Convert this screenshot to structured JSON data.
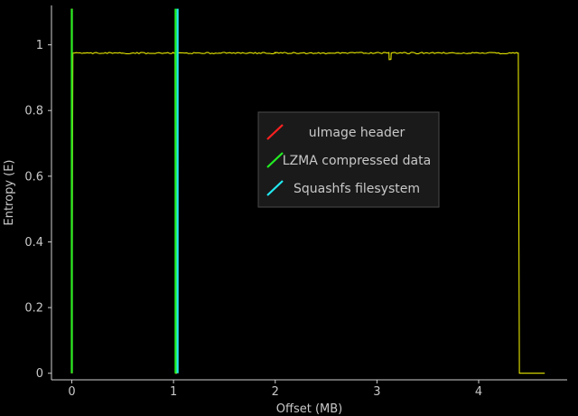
{
  "chart_data": {
    "type": "line",
    "title": "",
    "xlabel": "Offset (MB)",
    "ylabel": "Entropy (E)",
    "xlim": [
      -0.2,
      4.87
    ],
    "ylim": [
      -0.02,
      1.12
    ],
    "xticks": [
      0,
      1,
      2,
      3,
      4
    ],
    "yticks": [
      0,
      0.2,
      0.4,
      0.6,
      0.8,
      1
    ],
    "xtick_labels": [
      "0",
      "1",
      "2",
      "3",
      "4"
    ],
    "ytick_labels": [
      "0",
      "0.2",
      "0.4",
      "0.6",
      "0.8",
      "1"
    ],
    "grid": false,
    "legend_position": "center-right",
    "background": "#000000",
    "series": [
      {
        "color": "#e6e600",
        "x": [
          0,
          0.01,
          0.5,
          1.0,
          1.015,
          1.02,
          1.03,
          1.04,
          2.0,
          3.1,
          3.12,
          3.14,
          4.0,
          4.38,
          4.39,
          4.4,
          4.65
        ],
        "y": [
          0,
          0.975,
          0.975,
          0.975,
          0.975,
          0,
          0,
          0.975,
          0.975,
          0.975,
          0.955,
          0.975,
          0.975,
          0.975,
          0.975,
          0,
          0
        ]
      }
    ],
    "markers": [
      {
        "name": "uImage header",
        "color": "#ff2020",
        "x": 0.0
      },
      {
        "name": "LZMA compressed data",
        "color": "#22ee22",
        "x": 0.0
      },
      {
        "name": "LZMA compressed data",
        "color": "#22ee22",
        "x": 1.02
      },
      {
        "name": "Squashfs filesystem",
        "color": "#22e8f0",
        "x": 1.04
      }
    ],
    "legend": [
      {
        "label": "uImage header",
        "color": "#ff2020"
      },
      {
        "label": "LZMA compressed data",
        "color": "#22ee22"
      },
      {
        "label": "Squashfs filesystem",
        "color": "#22e8f0"
      }
    ]
  }
}
